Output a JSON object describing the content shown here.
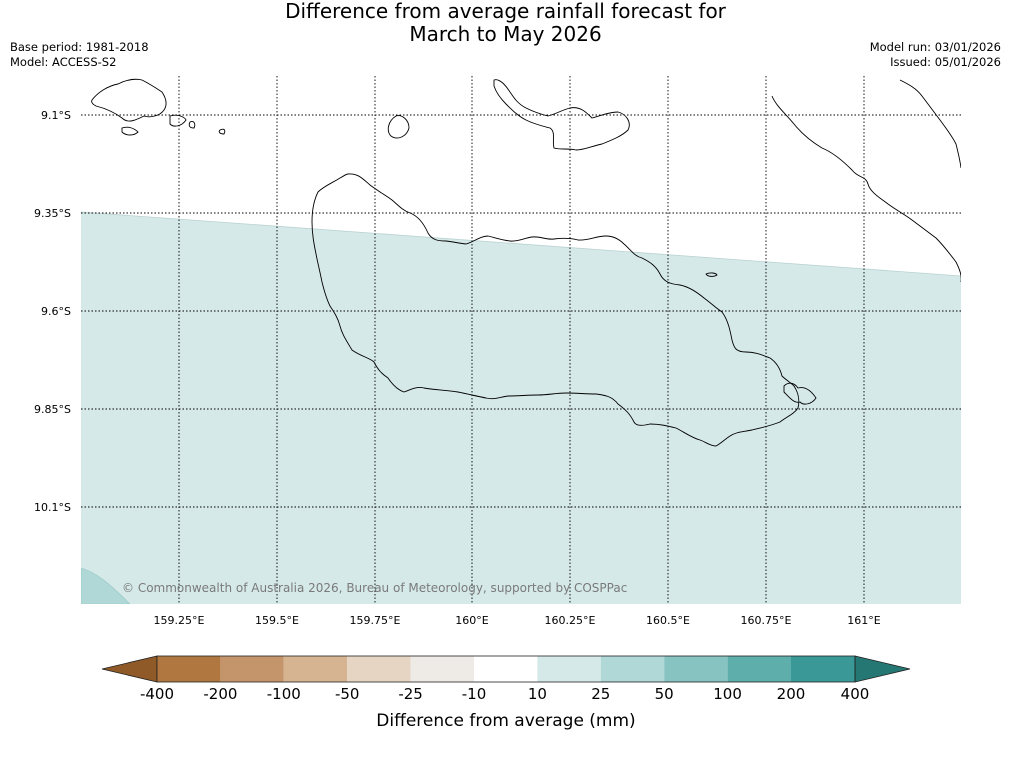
{
  "title": {
    "line1": "Difference from average rainfall forecast for",
    "line2": "March to May 2026"
  },
  "meta": {
    "base_period": "Base period: 1981-2018",
    "model": "Model: ACCESS-S2",
    "model_run": "Model run: 03/01/2026",
    "issued": "Issued: 05/01/2026"
  },
  "map": {
    "latitude_labels": [
      "9.1°S",
      "9.35°S",
      "9.6°S",
      "9.85°S",
      "10.1°S"
    ],
    "longitude_labels": [
      "159.25°E",
      "159.5°E",
      "159.75°E",
      "160°E",
      "160.25°E",
      "160.5°E",
      "160.75°E",
      "161°E"
    ],
    "copyright": "© Commonwealth of Australia 2026, Bureau of Meteorology, supported by COSPPac",
    "colors": {
      "ocean_background": "#ffffff",
      "band_10_25": "#d5e9e8",
      "band_25_50": "#b0d8d7",
      "coastline": "#000000",
      "gridline": "#000000"
    }
  },
  "legend": {
    "tick_labels": [
      "-400",
      "-200",
      "-100",
      "-50",
      "-25",
      "-10",
      "10",
      "25",
      "50",
      "100",
      "200",
      "400"
    ],
    "colors": [
      "#8f5a28",
      "#b07840",
      "#c4946a",
      "#d6b492",
      "#e7d5c3",
      "#eeeae6",
      "#ffffff",
      "#d5e9e8",
      "#b0d8d7",
      "#86c3c1",
      "#5eaeac",
      "#3a9996",
      "#257774"
    ],
    "label": "Difference from average (mm)"
  }
}
